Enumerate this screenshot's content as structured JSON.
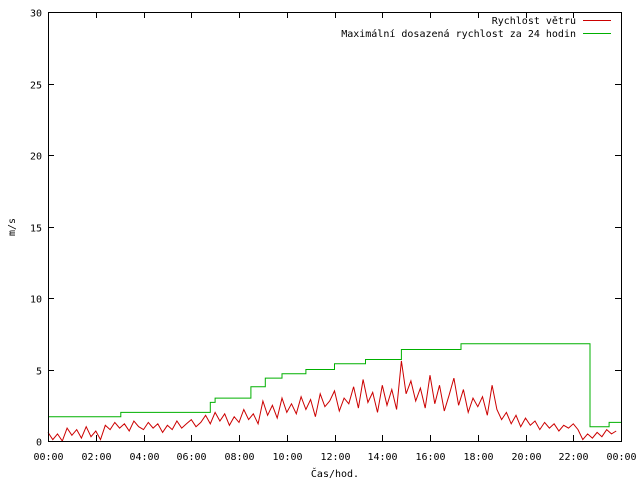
{
  "chart_data": {
    "type": "line",
    "title": "",
    "xlabel": "Čas/hod.",
    "ylabel": "m/s",
    "xlim": [
      0,
      24
    ],
    "ylim": [
      0,
      30
    ],
    "x_ticks": [
      0,
      2,
      4,
      6,
      8,
      10,
      12,
      14,
      16,
      18,
      20,
      22,
      24
    ],
    "x_tick_labels": [
      "00:00",
      "02:00",
      "04:00",
      "06:00",
      "08:00",
      "10:00",
      "12:00",
      "14:00",
      "16:00",
      "18:00",
      "20:00",
      "22:00",
      "00:00"
    ],
    "y_ticks": [
      0,
      5,
      10,
      15,
      20,
      25,
      30
    ],
    "y_tick_labels": [
      "0",
      "5",
      "10",
      "15",
      "20",
      "25",
      "30"
    ],
    "grid": false,
    "legend": "top-right",
    "series": [
      {
        "name": "Rychlost větru",
        "color": "#cc0000",
        "x": [
          0.0,
          0.2,
          0.4,
          0.6,
          0.8,
          1.0,
          1.2,
          1.4,
          1.6,
          1.8,
          2.0,
          2.2,
          2.4,
          2.6,
          2.8,
          3.0,
          3.2,
          3.4,
          3.6,
          3.8,
          4.0,
          4.2,
          4.4,
          4.6,
          4.8,
          5.0,
          5.2,
          5.4,
          5.6,
          5.8,
          6.0,
          6.2,
          6.4,
          6.6,
          6.8,
          7.0,
          7.2,
          7.4,
          7.6,
          7.8,
          8.0,
          8.2,
          8.4,
          8.6,
          8.8,
          9.0,
          9.2,
          9.4,
          9.6,
          9.8,
          10.0,
          10.2,
          10.4,
          10.6,
          10.8,
          11.0,
          11.2,
          11.4,
          11.6,
          11.8,
          12.0,
          12.2,
          12.4,
          12.6,
          12.8,
          13.0,
          13.2,
          13.4,
          13.6,
          13.8,
          14.0,
          14.2,
          14.4,
          14.6,
          14.8,
          15.0,
          15.2,
          15.4,
          15.6,
          15.8,
          16.0,
          16.2,
          16.4,
          16.6,
          16.8,
          17.0,
          17.2,
          17.4,
          17.6,
          17.8,
          18.0,
          18.2,
          18.4,
          18.6,
          18.8,
          19.0,
          19.2,
          19.4,
          19.6,
          19.8,
          20.0,
          20.2,
          20.4,
          20.6,
          20.8,
          21.0,
          21.2,
          21.4,
          21.6,
          21.8,
          22.0,
          22.2,
          22.4,
          22.6,
          22.8,
          23.0,
          23.2,
          23.4,
          23.6,
          23.8
        ],
        "values": [
          0.6,
          0.1,
          0.5,
          0.0,
          0.9,
          0.4,
          0.8,
          0.2,
          1.0,
          0.3,
          0.7,
          0.1,
          1.1,
          0.8,
          1.3,
          0.9,
          1.2,
          0.7,
          1.4,
          1.0,
          0.8,
          1.3,
          0.9,
          1.2,
          0.6,
          1.1,
          0.8,
          1.4,
          0.9,
          1.2,
          1.5,
          1.0,
          1.3,
          1.8,
          1.2,
          2.0,
          1.4,
          1.9,
          1.1,
          1.7,
          1.3,
          2.2,
          1.5,
          1.9,
          1.2,
          2.8,
          1.8,
          2.5,
          1.6,
          3.0,
          2.0,
          2.6,
          1.9,
          3.1,
          2.2,
          2.9,
          1.7,
          3.3,
          2.4,
          2.8,
          3.5,
          2.1,
          3.0,
          2.6,
          3.8,
          2.3,
          4.3,
          2.7,
          3.4,
          2.0,
          3.9,
          2.5,
          3.6,
          2.2,
          5.6,
          3.3,
          4.2,
          2.8,
          3.7,
          2.3,
          4.6,
          2.6,
          3.9,
          2.1,
          3.2,
          4.4,
          2.5,
          3.6,
          2.0,
          3.0,
          2.4,
          3.1,
          1.8,
          3.9,
          2.2,
          1.5,
          2.0,
          1.2,
          1.8,
          1.0,
          1.6,
          1.1,
          1.4,
          0.8,
          1.3,
          0.9,
          1.2,
          0.7,
          1.1,
          0.9,
          1.2,
          0.8,
          0.1,
          0.5,
          0.2,
          0.6,
          0.3,
          0.8,
          0.5,
          0.7
        ]
      },
      {
        "name": "Maximální dosazená rychlost za 24 hodin",
        "color": "#00b000",
        "x": [
          0.0,
          3.05,
          3.05,
          6.8,
          6.8,
          7.0,
          7.0,
          8.5,
          8.5,
          9.1,
          9.1,
          9.8,
          9.8,
          10.8,
          10.8,
          12.0,
          12.0,
          13.3,
          13.3,
          14.8,
          14.8,
          17.3,
          17.3,
          22.7,
          22.7,
          23.5,
          23.5,
          24.0
        ],
        "values": [
          1.7,
          1.7,
          2.0,
          2.0,
          2.7,
          2.7,
          3.0,
          3.0,
          3.8,
          3.8,
          4.4,
          4.4,
          4.7,
          4.7,
          5.0,
          5.0,
          5.4,
          5.4,
          5.7,
          5.7,
          6.4,
          6.4,
          6.8,
          6.8,
          1.0,
          1.0,
          1.3,
          1.3
        ]
      }
    ]
  }
}
